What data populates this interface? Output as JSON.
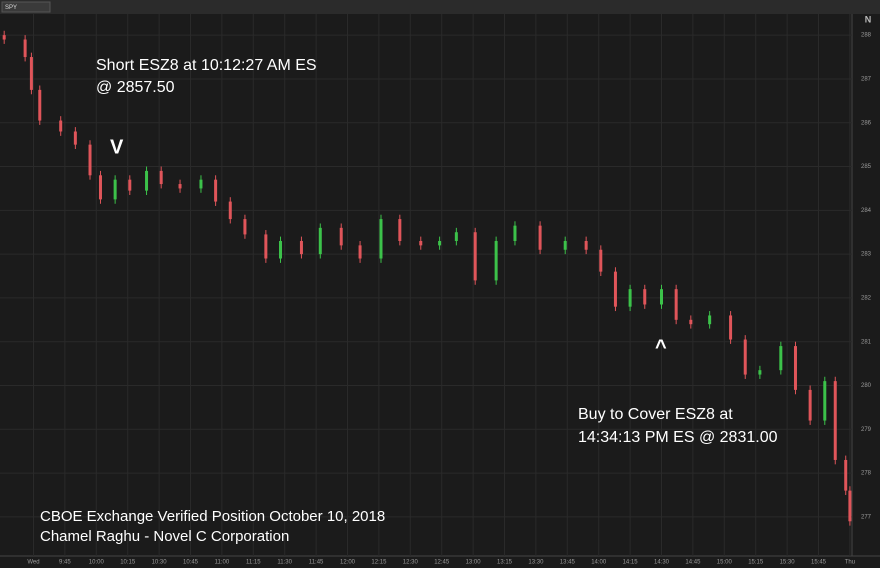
{
  "chart_data": {
    "type": "candlestick",
    "symbol": "SPY",
    "corner_label": "N",
    "up_color": "#3cc24a",
    "down_color": "#e0555a",
    "grid": true,
    "x": [
      556,
      566,
      569,
      573,
      583,
      590,
      597,
      602,
      609,
      616,
      624,
      631,
      640,
      650,
      657,
      664,
      671,
      681,
      688,
      698,
      707,
      717,
      726,
      736,
      745,
      755,
      764,
      772,
      781,
      791,
      800,
      812,
      824,
      834,
      841,
      848,
      855,
      862,
      870,
      877,
      884,
      893,
      903,
      910,
      917,
      927,
      934,
      941,
      948,
      953,
      958,
      960
    ],
    "open": [
      288.0,
      287.9,
      287.5,
      286.75,
      286.05,
      285.8,
      285.5,
      284.8,
      284.25,
      284.7,
      284.45,
      284.9,
      284.6,
      284.5,
      284.7,
      284.2,
      283.8,
      283.45,
      282.9,
      283.3,
      283.0,
      283.6,
      283.2,
      282.9,
      283.8,
      283.3,
      283.2,
      283.3,
      283.5,
      282.4,
      283.3,
      283.65,
      283.1,
      283.3,
      283.1,
      282.6,
      281.8,
      282.2,
      281.85,
      282.2,
      281.5,
      281.4,
      281.6,
      281.05,
      280.25,
      280.35,
      280.9,
      279.9,
      279.2,
      280.1,
      278.3,
      277.6
    ],
    "high": [
      288.1,
      288.0,
      287.6,
      286.85,
      286.15,
      285.9,
      285.6,
      284.9,
      284.8,
      284.8,
      285.0,
      285.0,
      284.7,
      284.8,
      284.8,
      284.3,
      283.9,
      283.55,
      283.4,
      283.4,
      283.7,
      283.7,
      283.3,
      283.9,
      283.9,
      283.4,
      283.4,
      283.6,
      283.6,
      283.4,
      283.75,
      283.75,
      283.4,
      283.4,
      283.2,
      282.7,
      282.3,
      282.3,
      282.3,
      282.3,
      281.6,
      281.7,
      281.7,
      281.15,
      280.45,
      281.0,
      281.0,
      280.0,
      280.2,
      280.2,
      278.4,
      277.7
    ],
    "low": [
      287.8,
      287.4,
      286.65,
      285.95,
      285.7,
      285.4,
      284.7,
      284.15,
      284.15,
      284.35,
      284.35,
      284.5,
      284.4,
      284.4,
      284.1,
      283.7,
      283.35,
      282.8,
      282.8,
      282.9,
      282.9,
      283.1,
      282.8,
      282.8,
      283.2,
      283.1,
      283.1,
      283.2,
      282.3,
      282.3,
      283.2,
      283.0,
      283.0,
      283.0,
      282.5,
      281.7,
      281.7,
      281.75,
      281.75,
      281.4,
      281.3,
      281.3,
      280.95,
      280.15,
      280.15,
      280.25,
      279.8,
      279.1,
      279.1,
      278.2,
      277.5,
      276.8
    ],
    "close": [
      287.9,
      287.5,
      286.75,
      286.05,
      285.8,
      285.5,
      284.8,
      284.25,
      284.7,
      284.45,
      284.9,
      284.6,
      284.5,
      284.7,
      284.2,
      283.8,
      283.45,
      282.9,
      283.3,
      283.0,
      283.6,
      283.2,
      282.9,
      283.8,
      283.3,
      283.2,
      283.3,
      283.5,
      282.4,
      283.3,
      283.65,
      283.1,
      283.3,
      283.1,
      282.6,
      281.8,
      282.2,
      281.85,
      282.2,
      281.5,
      281.4,
      281.6,
      281.05,
      280.25,
      280.35,
      280.9,
      279.9,
      279.2,
      280.1,
      278.3,
      277.6,
      276.9
    ],
    "xlim": [
      554,
      961
    ],
    "xticks": [
      {
        "value": 570,
        "label": "Wed"
      },
      {
        "value": 585,
        "label": "9:45"
      },
      {
        "value": 600,
        "label": "10:00"
      },
      {
        "value": 615,
        "label": "10:15"
      },
      {
        "value": 630,
        "label": "10:30"
      },
      {
        "value": 645,
        "label": "10:45"
      },
      {
        "value": 660,
        "label": "11:00"
      },
      {
        "value": 675,
        "label": "11:15"
      },
      {
        "value": 690,
        "label": "11:30"
      },
      {
        "value": 705,
        "label": "11:45"
      },
      {
        "value": 720,
        "label": "12:00"
      },
      {
        "value": 735,
        "label": "12:15"
      },
      {
        "value": 750,
        "label": "12:30"
      },
      {
        "value": 765,
        "label": "12:45"
      },
      {
        "value": 780,
        "label": "13:00"
      },
      {
        "value": 795,
        "label": "13:15"
      },
      {
        "value": 810,
        "label": "13:30"
      },
      {
        "value": 825,
        "label": "13:45"
      },
      {
        "value": 840,
        "label": "14:00"
      },
      {
        "value": 855,
        "label": "14:15"
      },
      {
        "value": 870,
        "label": "14:30"
      },
      {
        "value": 885,
        "label": "14:45"
      },
      {
        "value": 900,
        "label": "15:00"
      },
      {
        "value": 915,
        "label": "15:15"
      },
      {
        "value": 930,
        "label": "15:30"
      },
      {
        "value": 945,
        "label": "15:45"
      },
      {
        "value": 960,
        "label": "Thu"
      }
    ],
    "ylim": [
      276.13,
      288.46
    ],
    "yticks": [
      277,
      278,
      279,
      280,
      281,
      282,
      283,
      284,
      285,
      286,
      287,
      288
    ],
    "annotations": [
      {
        "lines": [
          "Short ESZ8 at 10:12:27 AM ES",
          "@ 2857.50"
        ]
      },
      {
        "lines": [
          "V"
        ]
      },
      {
        "lines": [
          "^"
        ]
      },
      {
        "lines": [
          "Buy to Cover ESZ8 at",
          "14:34:13 PM ES @ 2831.00"
        ]
      },
      {
        "lines": [
          "CBOE Exchange Verified Position October 10, 2018",
          "Chamel Raghu - Novel C Corporation"
        ]
      }
    ]
  }
}
